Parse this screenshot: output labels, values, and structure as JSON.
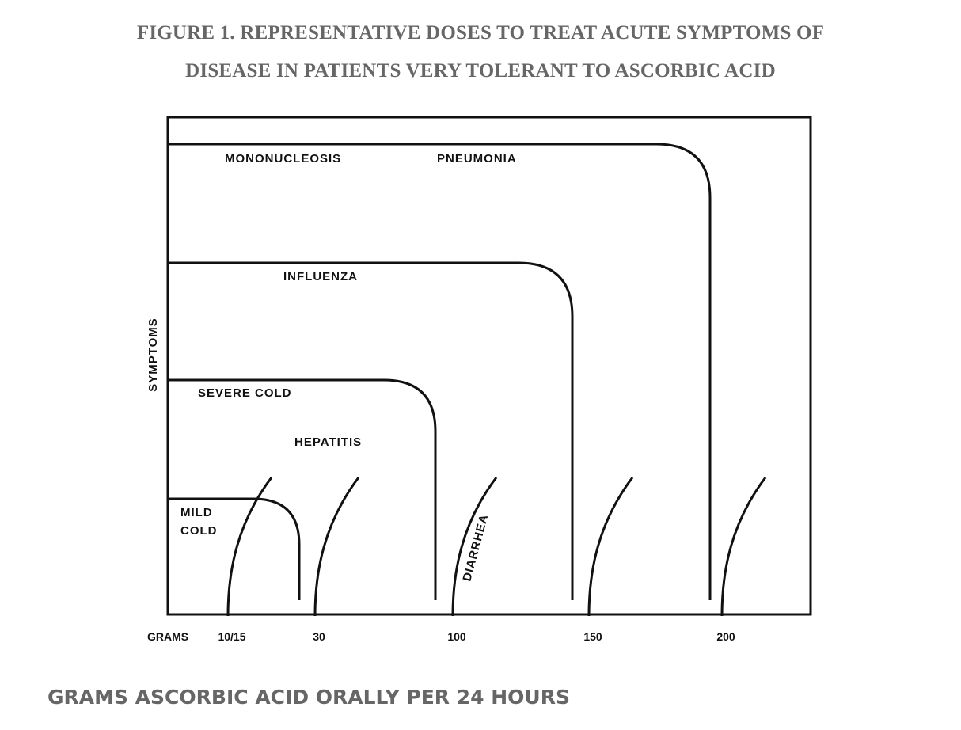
{
  "figure": {
    "title_line1": "FIGURE 1. REPRESENTATIVE DOSES TO TREAT ACUTE SYMPTOMS OF",
    "title_line2": "DISEASE IN PATIENTS VERY TOLERANT TO ASCORBIC ACID",
    "caption": "GRAMS ASCORBIC ACID ORALLY PER 24 HOURS"
  },
  "chart_data": {
    "type": "line",
    "ylabel": "SYMPTOMS",
    "x_prefix_label": "GRAMS",
    "x_ticks": [
      "10/15",
      "30",
      "100",
      "150",
      "200"
    ],
    "diseases": [
      {
        "name": "MILD COLD",
        "label_lines": [
          "MILD",
          "COLD"
        ],
        "symptom_level": 1,
        "tolerance_dose_tick": 1
      },
      {
        "name": "SEVERE COLD",
        "label_lines": [
          "SEVERE COLD"
        ],
        "symptom_level": 2,
        "tolerance_dose_tick": 2
      },
      {
        "name": "HEPATITIS",
        "label_lines": [
          "HEPATITIS"
        ],
        "symptom_level": 2,
        "tolerance_dose_tick": 2
      },
      {
        "name": "INFLUENZA",
        "label_lines": [
          "INFLUENZA"
        ],
        "symptom_level": 3,
        "tolerance_dose_tick": 3
      },
      {
        "name": "MONONUCLEOSIS",
        "label_lines": [
          "MONONUCLEOSIS"
        ],
        "symptom_level": 4,
        "tolerance_dose_tick": 4
      },
      {
        "name": "PNEUMONIA",
        "label_lines": [
          "PNEUMONIA"
        ],
        "symptom_level": 4,
        "tolerance_dose_tick": 4
      }
    ],
    "diarrhea_label": "DIARRHEA",
    "diarrhea_curves_at_ticks": [
      0,
      1,
      2,
      3,
      4
    ],
    "grid": false
  }
}
